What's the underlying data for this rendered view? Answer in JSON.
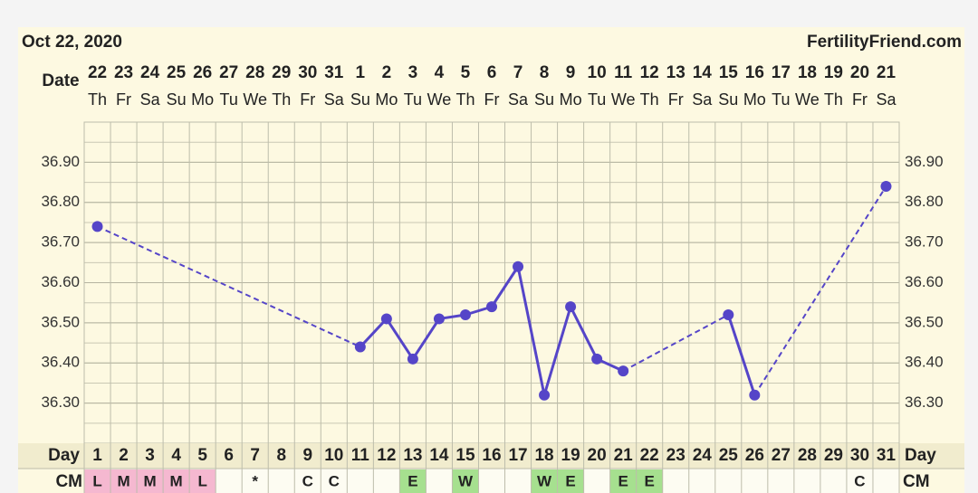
{
  "chart_data": {
    "type": "line",
    "title": "Oct 22, 2020",
    "source": "FertilityFriend.com",
    "date_label": "Date",
    "dates": [
      "22",
      "23",
      "24",
      "25",
      "26",
      "27",
      "28",
      "29",
      "30",
      "31",
      "1",
      "2",
      "3",
      "4",
      "5",
      "6",
      "7",
      "8",
      "9",
      "10",
      "11",
      "12",
      "13",
      "14",
      "15",
      "16",
      "17",
      "18",
      "19",
      "20",
      "21"
    ],
    "weekdays": [
      "Th",
      "Fr",
      "Sa",
      "Su",
      "Mo",
      "Tu",
      "We",
      "Th",
      "Fr",
      "Sa",
      "Su",
      "Mo",
      "Tu",
      "We",
      "Th",
      "Fr",
      "Sa",
      "Su",
      "Mo",
      "Tu",
      "We",
      "Th",
      "Fr",
      "Sa",
      "Su",
      "Mo",
      "Tu",
      "We",
      "Th",
      "Fr",
      "Sa"
    ],
    "day_label": "Day",
    "x": [
      1,
      2,
      3,
      4,
      5,
      6,
      7,
      8,
      9,
      10,
      11,
      12,
      13,
      14,
      15,
      16,
      17,
      18,
      19,
      20,
      21,
      22,
      23,
      24,
      25,
      26,
      27,
      28,
      29,
      30,
      31
    ],
    "cm_label": "CM",
    "cm": [
      "L",
      "M",
      "M",
      "M",
      "L",
      null,
      "*",
      null,
      "C",
      "C",
      null,
      null,
      "E",
      null,
      "W",
      null,
      null,
      "W",
      "E",
      null,
      "E",
      "E",
      null,
      null,
      null,
      null,
      null,
      null,
      null,
      "C",
      null
    ],
    "cm_colors": [
      "#f5b8d0",
      "#f5b8d0",
      "#f5b8d0",
      "#f5b8d0",
      "#f5b8d0",
      null,
      null,
      null,
      null,
      null,
      null,
      null,
      "#a6e08f",
      null,
      "#a6e08f",
      null,
      null,
      "#a6e08f",
      "#a6e08f",
      null,
      "#a6e08f",
      "#a6e08f",
      null,
      null,
      null,
      null,
      null,
      null,
      null,
      null,
      null
    ],
    "series": [
      {
        "color": "#5545c8",
        "values": [
          36.74,
          null,
          null,
          null,
          null,
          null,
          null,
          null,
          null,
          null,
          36.44,
          36.51,
          36.41,
          36.51,
          36.52,
          36.54,
          36.64,
          36.32,
          36.54,
          36.41,
          36.38,
          null,
          null,
          null,
          36.52,
          36.32,
          null,
          null,
          null,
          null,
          36.84
        ]
      }
    ],
    "ylim": [
      36.2,
      37.0
    ],
    "yticks": [
      {
        "value": 36.3,
        "label": "36.30"
      },
      {
        "value": 36.4,
        "label": "36.40"
      },
      {
        "value": 36.5,
        "label": "36.50"
      },
      {
        "value": 36.6,
        "label": "36.60"
      },
      {
        "value": 36.7,
        "label": "36.70"
      },
      {
        "value": 36.8,
        "label": "36.80"
      },
      {
        "value": 36.9,
        "label": "36.90"
      }
    ],
    "grid": true
  }
}
